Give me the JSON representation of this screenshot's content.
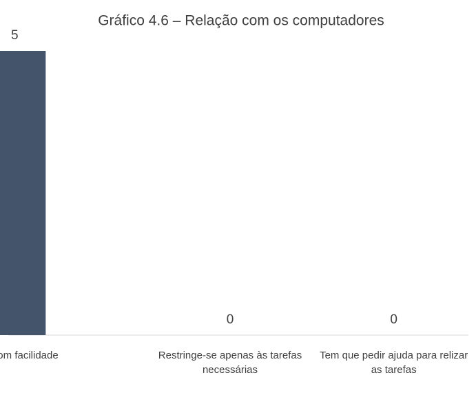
{
  "chart_data": {
    "type": "bar",
    "title": "Gráfico 4.6 – Relação com os computadores",
    "categories": [
      "Usa com facilidade",
      "Restringe-se apenas às tarefas necessárias",
      "Tem que pedir ajuda para relizar as tarefas"
    ],
    "values": [
      5,
      0,
      0
    ],
    "color": "#44546a"
  }
}
